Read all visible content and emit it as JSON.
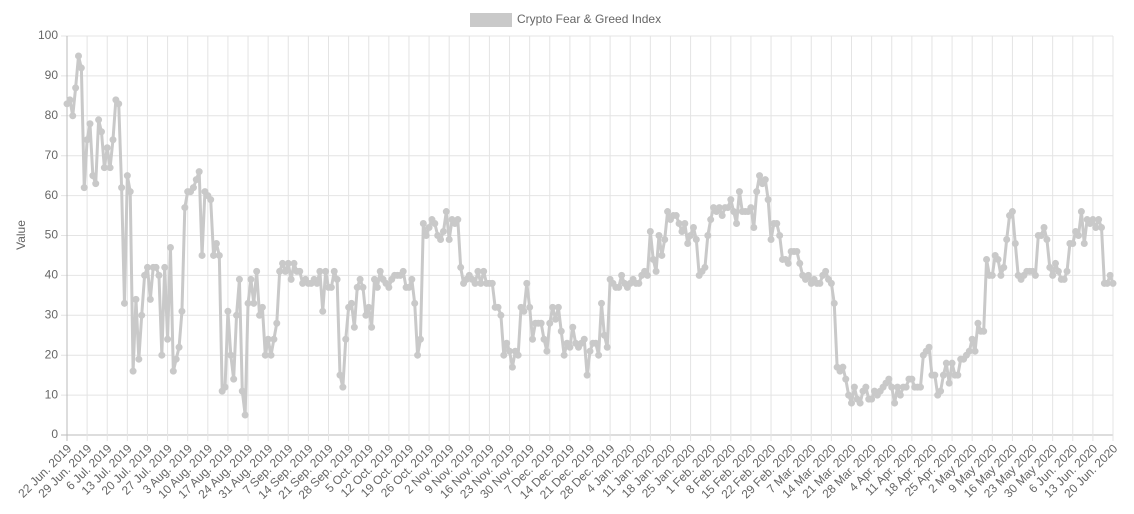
{
  "chart_data": {
    "type": "line",
    "y_label": "Value",
    "legend": "top",
    "grid": true,
    "ylim": [
      0,
      100
    ],
    "yticks": [
      0,
      10,
      20,
      30,
      40,
      50,
      60,
      70,
      80,
      90,
      100
    ],
    "categories": [
      "22 Jun. 2019",
      null,
      null,
      null,
      null,
      null,
      null,
      "29 Jun. 2019",
      null,
      null,
      null,
      null,
      null,
      null,
      "6 Jul. 2019",
      null,
      null,
      null,
      null,
      null,
      null,
      "13 Jul. 2019",
      null,
      null,
      null,
      null,
      null,
      null,
      "20 Jul. 2019",
      null,
      null,
      null,
      null,
      null,
      null,
      "27 Jul. 2019",
      null,
      null,
      null,
      null,
      null,
      null,
      "3 Aug. 2019",
      null,
      null,
      null,
      null,
      null,
      null,
      "10 Aug. 2019",
      null,
      null,
      null,
      null,
      null,
      null,
      "17 Aug. 2019",
      null,
      null,
      null,
      null,
      null,
      null,
      "24 Aug. 2019",
      null,
      null,
      null,
      null,
      null,
      null,
      "31 Aug. 2019",
      null,
      null,
      null,
      null,
      null,
      null,
      "7 Sep. 2019",
      null,
      null,
      null,
      null,
      null,
      null,
      "14 Sep. 2019",
      null,
      null,
      null,
      null,
      null,
      null,
      "21 Sep. 2019",
      null,
      null,
      null,
      null,
      null,
      null,
      "28 Sep. 2019",
      null,
      null,
      null,
      null,
      null,
      null,
      "5 Oct. 2019",
      null,
      null,
      null,
      null,
      null,
      null,
      "12 Oct. 2019",
      null,
      null,
      null,
      null,
      null,
      null,
      "19 Oct. 2019",
      null,
      null,
      null,
      null,
      null,
      null,
      "26 Oct. 2019",
      null,
      null,
      null,
      null,
      null,
      null,
      "2 Nov. 2019",
      null,
      null,
      null,
      null,
      null,
      null,
      "9 Nov. 2019",
      null,
      null,
      null,
      null,
      null,
      null,
      "16 Nov. 2019",
      null,
      null,
      null,
      null,
      null,
      null,
      "23 Nov. 2019",
      null,
      null,
      null,
      null,
      null,
      null,
      "30 Nov. 2019",
      null,
      null,
      null,
      null,
      null,
      null,
      "7 Dec. 2019",
      null,
      null,
      null,
      null,
      null,
      null,
      "14 Dec. 2019",
      null,
      null,
      null,
      null,
      null,
      null,
      "21 Dec. 2019",
      null,
      null,
      null,
      null,
      null,
      null,
      "28 Dec. 2019",
      null,
      null,
      null,
      null,
      null,
      null,
      "4 Jan. 2020",
      null,
      null,
      null,
      null,
      null,
      null,
      "11 Jan. 2020",
      null,
      null,
      null,
      null,
      null,
      null,
      "18 Jan. 2020",
      null,
      null,
      null,
      null,
      null,
      null,
      "25 Jan. 2020",
      null,
      null,
      null,
      null,
      null,
      null,
      "1 Feb. 2020",
      null,
      null,
      null,
      null,
      null,
      null,
      "8 Feb. 2020",
      null,
      null,
      null,
      null,
      null,
      null,
      "15 Feb. 2020",
      null,
      null,
      null,
      null,
      null,
      null,
      "22 Feb. 2020",
      null,
      null,
      null,
      null,
      null,
      null,
      "29 Feb. 2020",
      null,
      null,
      null,
      null,
      null,
      null,
      "7 Mar. 2020",
      null,
      null,
      null,
      null,
      null,
      null,
      "14 Mar. 2020",
      null,
      null,
      null,
      null,
      null,
      null,
      "21 Mar. 2020",
      null,
      null,
      null,
      null,
      null,
      null,
      "28 Mar. 2020",
      null,
      null,
      null,
      null,
      null,
      null,
      "4 Apr. 2020",
      null,
      null,
      null,
      null,
      null,
      null,
      "11 Apr. 2020",
      null,
      null,
      null,
      null,
      null,
      null,
      "18 Apr. 2020",
      null,
      null,
      null,
      null,
      null,
      null,
      "25 Apr. 2020",
      null,
      null,
      null,
      null,
      null,
      null,
      "2 May 2020",
      null,
      null,
      null,
      null,
      null,
      null,
      "9 May 2020",
      null,
      null,
      null,
      null,
      null,
      null,
      "16 May 2020",
      null,
      null,
      null,
      null,
      null,
      null,
      "23 May 2020",
      null,
      null,
      null,
      null,
      null,
      null,
      "30 May 2020",
      null,
      null,
      null,
      null,
      null,
      null,
      "6 Jun. 2020",
      null,
      null,
      null,
      null,
      null,
      null,
      "13 Jun. 2020",
      null,
      null,
      null,
      null,
      null,
      null,
      "20 Jun. 2020"
    ],
    "series": [
      {
        "name": "Crypto Fear & Greed Index",
        "color": "#c9c9c9",
        "values": [
          83,
          84,
          80,
          87,
          95,
          92,
          62,
          74,
          78,
          65,
          63,
          79,
          76,
          67,
          72,
          67,
          74,
          84,
          83,
          62,
          33,
          65,
          61,
          16,
          34,
          19,
          30,
          40,
          42,
          34,
          42,
          42,
          40,
          20,
          42,
          24,
          47,
          16,
          19,
          22,
          31,
          57,
          61,
          61,
          62,
          64,
          66,
          45,
          61,
          60,
          59,
          45,
          48,
          45,
          11,
          12,
          31,
          20,
          14,
          30,
          39,
          11,
          5,
          33,
          39,
          33,
          41,
          30,
          32,
          20,
          24,
          20,
          24,
          28,
          41,
          43,
          41,
          43,
          39,
          43,
          41,
          41,
          38,
          39,
          38,
          38,
          39,
          38,
          41,
          31,
          41,
          37,
          37,
          41,
          39,
          15,
          12,
          24,
          32,
          33,
          27,
          37,
          39,
          37,
          30,
          32,
          27,
          39,
          37,
          41,
          39,
          38,
          37,
          39,
          40,
          40,
          40,
          41,
          37,
          37,
          39,
          33,
          20,
          24,
          53,
          50,
          52,
          54,
          53,
          50,
          49,
          51,
          56,
          49,
          54,
          53,
          54,
          42,
          38,
          39,
          40,
          39,
          38,
          41,
          38,
          41,
          38,
          38,
          38,
          32,
          32,
          30,
          20,
          23,
          21,
          17,
          21,
          20,
          32,
          31,
          38,
          32,
          24,
          28,
          28,
          28,
          24,
          21,
          28,
          32,
          29,
          32,
          26,
          20,
          23,
          22,
          27,
          23,
          22,
          23,
          24,
          15,
          21,
          23,
          23,
          20,
          33,
          25,
          22,
          39,
          38,
          37,
          37,
          40,
          38,
          37,
          38,
          39,
          38,
          38,
          40,
          41,
          40,
          51,
          44,
          41,
          50,
          45,
          49,
          56,
          54,
          55,
          55,
          53,
          51,
          53,
          48,
          50,
          52,
          49,
          40,
          41,
          42,
          50,
          54,
          57,
          56,
          57,
          55,
          57,
          57,
          59,
          56,
          53,
          61,
          56,
          56,
          56,
          57,
          52,
          61,
          65,
          63,
          64,
          59,
          49,
          53,
          53,
          50,
          44,
          44,
          43,
          46,
          46,
          46,
          43,
          40,
          39,
          40,
          38,
          39,
          38,
          38,
          40,
          41,
          39,
          38,
          33,
          17,
          16,
          17,
          14,
          10,
          8,
          12,
          9,
          8,
          11,
          12,
          9,
          9,
          11,
          10,
          11,
          12,
          13,
          14,
          12,
          8,
          12,
          10,
          12,
          12,
          14,
          14,
          12,
          12,
          12,
          20,
          21,
          22,
          15,
          15,
          10,
          11,
          15,
          18,
          13,
          18,
          15,
          15,
          19,
          19,
          20,
          21,
          24,
          21,
          28,
          26,
          26,
          44,
          40,
          40,
          45,
          44,
          40,
          42,
          49,
          55,
          56,
          48,
          40,
          39,
          40,
          41,
          41,
          41,
          40,
          50,
          50,
          52,
          49,
          42,
          40,
          43,
          41,
          39,
          39,
          41,
          48,
          48,
          51,
          50,
          56,
          48,
          54,
          53,
          54,
          52,
          54,
          52,
          38,
          38,
          40,
          38
        ]
      }
    ]
  }
}
